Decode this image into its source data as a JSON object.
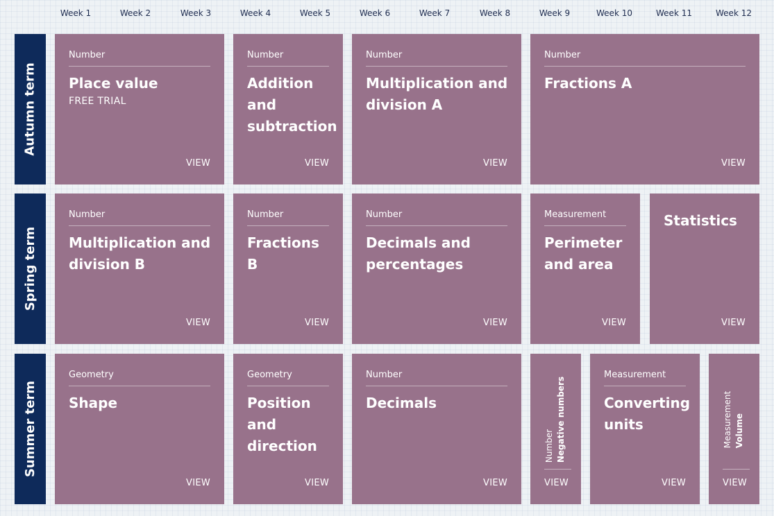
{
  "weeks": [
    "Week 1",
    "Week 2",
    "Week 3",
    "Week 4",
    "Week 5",
    "Week 6",
    "Week 7",
    "Week 8",
    "Week 9",
    "Week 10",
    "Week 11",
    "Week 12"
  ],
  "terms": {
    "autumn": "Autumn term",
    "spring": "Spring term",
    "summer": "Summer term"
  },
  "view_label": "VIEW",
  "autumn": {
    "place_value": {
      "category": "Number",
      "title": "Place value",
      "subtitle": "FREE TRIAL"
    },
    "addition": {
      "category": "Number",
      "title": "Addition and subtraction"
    },
    "multiplication_a": {
      "category": "Number",
      "title": "Multiplication and division A"
    },
    "fractions_a": {
      "category": "Number",
      "title": "Fractions A"
    }
  },
  "spring": {
    "multiplication_b": {
      "category": "Number",
      "title": "Multiplication and division B"
    },
    "fractions_b": {
      "category": "Number",
      "title": "Fractions B"
    },
    "decimals_percentages": {
      "category": "Number",
      "title": "Decimals and percentages"
    },
    "perimeter": {
      "category": "Measurement",
      "title": "Perimeter and area"
    },
    "statistics": {
      "title": "Statistics"
    }
  },
  "summer": {
    "shape": {
      "category": "Geometry",
      "title": "Shape"
    },
    "position": {
      "category": "Geometry",
      "title": "Position and direction"
    },
    "decimals": {
      "category": "Number",
      "title": "Decimals"
    },
    "negative": {
      "category": "Number",
      "title": "Negative numbers"
    },
    "converting": {
      "category": "Measurement",
      "title": "Converting units"
    },
    "volume": {
      "category": "Measurement",
      "title": "Volume"
    }
  },
  "colors": {
    "card": "#98728b",
    "term_bar": "#0e2a5a",
    "week_text": "#1d2b4f"
  }
}
